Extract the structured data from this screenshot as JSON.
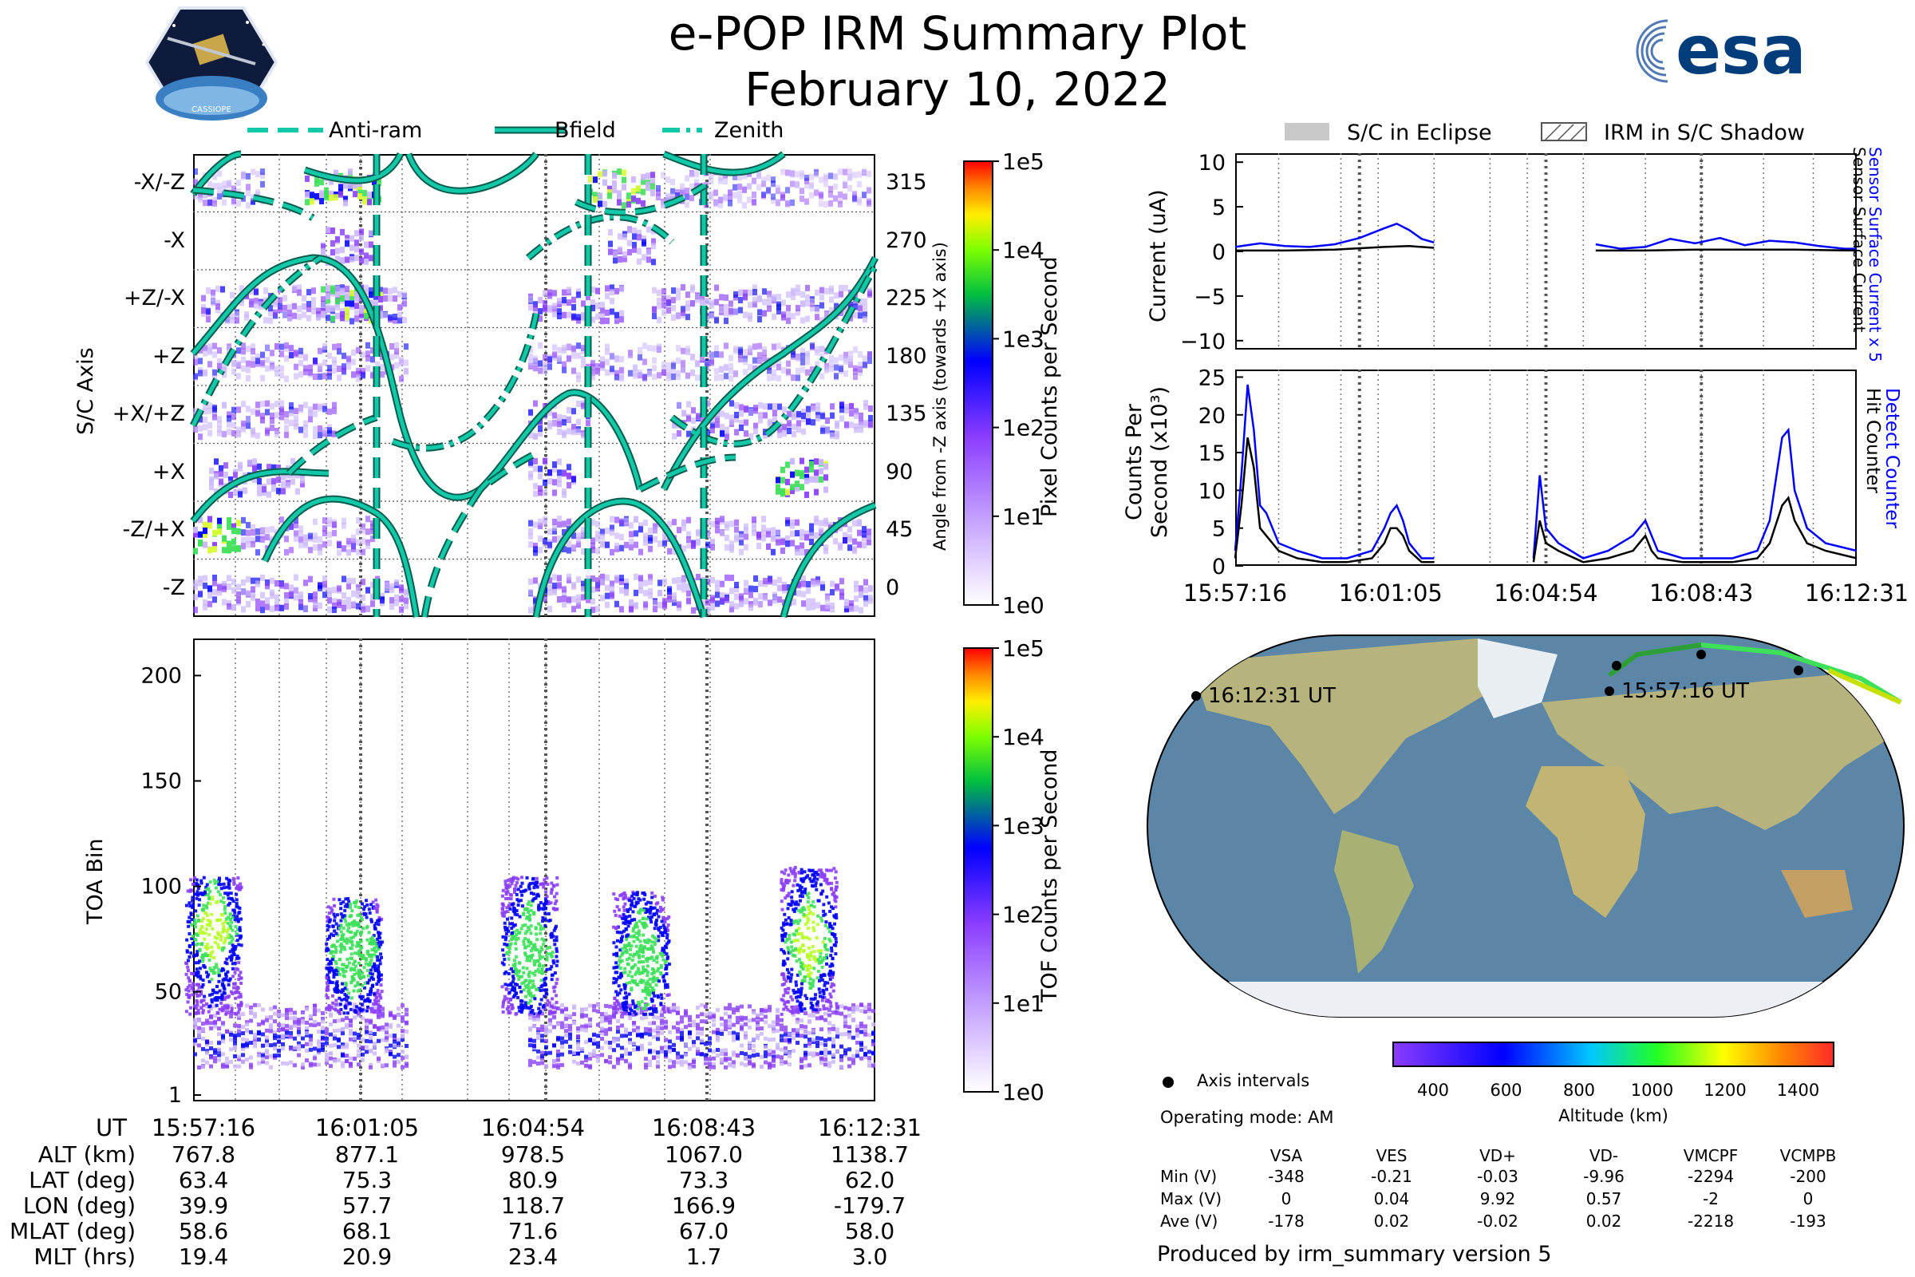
{
  "header": {
    "title": "e-POP IRM Summary Plot",
    "date": "February 10, 2022",
    "logo_left_text": "CASSIOPE",
    "logo_right_text": "esa"
  },
  "legend_top": [
    "Anti-ram",
    "Bfield",
    "Zenith"
  ],
  "legend_right": [
    "S/C in Eclipse",
    "IRM in S/C Shadow"
  ],
  "colors": {
    "teal": "#11c9a8",
    "pink": "#ff79d2",
    "blue": "#0000ff",
    "violet": "#8b3dff",
    "green": "#3ee05a",
    "map_ocean": "#5b86a8",
    "map_land": "#b7b37c",
    "map_ice": "#ecf0f4"
  },
  "chart_data": [
    {
      "type": "heatmap",
      "title": "Pixel Counts",
      "ylabel": "S/C Axis",
      "ylabel_right": "Angle from -Z axis (towards +X axis)",
      "y_categories": [
        "-X/-Z",
        "-X",
        "+Z/-X",
        "+Z",
        "+X/+Z",
        "+X",
        "-Z/+X",
        "-Z"
      ],
      "y_angles": [
        315,
        270,
        225,
        180,
        135,
        90,
        45,
        0
      ],
      "colorbar_label": "Pixel Counts per Second",
      "colorbar_ticks": [
        "1e5",
        "1e4",
        "1e3",
        "1e2",
        "1e1",
        "1e0"
      ]
    },
    {
      "type": "heatmap",
      "title": "TOF Counts",
      "ylabel": "TOA Bin",
      "yticks": [
        "200",
        "150",
        "100",
        "50",
        "1"
      ],
      "ylim": [
        1,
        210
      ],
      "colorbar_label": "TOF Counts per Second",
      "colorbar_ticks": [
        "1e5",
        "1e4",
        "1e3",
        "1e2",
        "1e1",
        "1e0"
      ]
    },
    {
      "type": "line",
      "title": "Current",
      "ylabel": "Current (uA)",
      "ylim": [
        -11,
        11
      ],
      "yticks": [
        "10",
        "5",
        "0",
        "−5",
        "−10"
      ],
      "right_label_blue": "Sensor Surface Current x 5",
      "right_label_black": "Sensor Surface Current",
      "series": [
        {
          "name": "Sensor Surface Current x 5",
          "color": "#0000ff",
          "x": [
            0,
            0.04,
            0.08,
            0.12,
            0.16,
            0.2,
            0.24,
            0.26,
            0.28,
            0.3,
            0.32,
            0.58,
            0.62,
            0.66,
            0.7,
            0.74,
            0.78,
            0.82,
            0.86,
            0.9,
            0.94,
            0.98,
            1.0
          ],
          "values": [
            0.5,
            0.9,
            0.6,
            0.5,
            0.8,
            1.5,
            2.6,
            3.1,
            2.4,
            1.4,
            1.0,
            0.8,
            0.3,
            0.5,
            1.4,
            0.9,
            1.5,
            0.7,
            1.2,
            1.0,
            0.6,
            0.3,
            0.3
          ]
        },
        {
          "name": "Sensor Surface Current",
          "color": "#000000",
          "x": [
            0,
            0.08,
            0.16,
            0.24,
            0.28,
            0.32,
            0.58,
            0.66,
            0.74,
            0.82,
            0.9,
            1.0
          ],
          "values": [
            0.1,
            0.1,
            0.2,
            0.5,
            0.6,
            0.4,
            0.1,
            0.1,
            0.2,
            0.2,
            0.2,
            0.1
          ]
        }
      ]
    },
    {
      "type": "line",
      "title": "Counts",
      "ylabel": "Counts Per Second (x10³)",
      "ylim": [
        0,
        26
      ],
      "yticks": [
        "25",
        "20",
        "15",
        "10",
        "5",
        "0"
      ],
      "x_categories": [
        "15:57:16",
        "16:01:05",
        "16:04:54",
        "16:08:43",
        "16:12:31"
      ],
      "right_label_blue": "Detect Counter",
      "right_label_black": "Hit Counter",
      "series": [
        {
          "name": "Detect Counter",
          "color": "#0000ff",
          "x": [
            0,
            0.01,
            0.02,
            0.03,
            0.04,
            0.05,
            0.07,
            0.1,
            0.14,
            0.18,
            0.22,
            0.24,
            0.25,
            0.26,
            0.27,
            0.28,
            0.3,
            0.32,
            0.48,
            0.49,
            0.5,
            0.52,
            0.56,
            0.6,
            0.64,
            0.66,
            0.67,
            0.68,
            0.72,
            0.76,
            0.8,
            0.84,
            0.86,
            0.88,
            0.89,
            0.9,
            0.92,
            0.95,
            1.0
          ],
          "values": [
            2,
            12,
            24,
            18,
            8,
            7,
            3,
            2,
            1,
            1,
            2,
            5,
            7,
            8,
            6,
            3,
            1,
            1,
            1,
            12,
            5,
            3,
            1,
            2,
            4,
            6,
            4,
            2,
            1,
            1,
            1,
            2,
            6,
            17,
            18,
            10,
            5,
            3,
            2
          ]
        },
        {
          "name": "Hit Counter",
          "color": "#000000",
          "x": [
            0,
            0.01,
            0.02,
            0.03,
            0.04,
            0.05,
            0.07,
            0.1,
            0.14,
            0.18,
            0.22,
            0.24,
            0.25,
            0.26,
            0.27,
            0.28,
            0.3,
            0.32,
            0.48,
            0.49,
            0.5,
            0.52,
            0.56,
            0.6,
            0.64,
            0.66,
            0.67,
            0.68,
            0.72,
            0.76,
            0.8,
            0.84,
            0.86,
            0.88,
            0.89,
            0.9,
            0.92,
            0.95,
            1.0
          ],
          "values": [
            1,
            8,
            17,
            13,
            5,
            4,
            2,
            1,
            0.5,
            0.5,
            1,
            3,
            5,
            5,
            4,
            2,
            0.5,
            0.5,
            0.5,
            6,
            3,
            2,
            0.5,
            1,
            2,
            4,
            2,
            1,
            0.5,
            0.5,
            0.5,
            1,
            3,
            8,
            9,
            6,
            3,
            2,
            1
          ]
        }
      ]
    }
  ],
  "x_axis": {
    "heading": "UT",
    "times": [
      "15:57:16",
      "16:01:05",
      "16:04:54",
      "16:08:43",
      "16:12:31"
    ]
  },
  "orbit_table": [
    {
      "label": "ALT (km)",
      "values": [
        "767.8",
        "877.1",
        "978.5",
        "1067.0",
        "1138.7"
      ]
    },
    {
      "label": "LAT (deg)",
      "values": [
        "63.4",
        "75.3",
        "80.9",
        "73.3",
        "62.0"
      ]
    },
    {
      "label": "LON (deg)",
      "values": [
        "39.9",
        "57.7",
        "118.7",
        "166.9",
        "-179.7"
      ]
    },
    {
      "label": "MLAT (deg)",
      "values": [
        "58.6",
        "68.1",
        "71.6",
        "67.0",
        "58.0"
      ]
    },
    {
      "label": "MLT (hrs)",
      "values": [
        "19.4",
        "20.9",
        "23.4",
        "1.7",
        "3.0"
      ]
    }
  ],
  "map": {
    "start_label": "15:57:16 UT",
    "end_label": "16:12:31 UT",
    "altitude_label": "Altitude (km)",
    "altitude_ticks": [
      "400",
      "600",
      "800",
      "1000",
      "1200",
      "1400"
    ],
    "axis_intervals_label": "Axis intervals",
    "operating_mode": "Operating mode: AM"
  },
  "voltage_table": {
    "headers": [
      "VSA",
      "VES",
      "VD+",
      "VD-",
      "VMCPF",
      "VCMPB"
    ],
    "rows": [
      {
        "label": "Min (V)",
        "values": [
          "-348",
          "-0.21",
          "-0.03",
          "-9.96",
          "-2294",
          "-200"
        ]
      },
      {
        "label": "Max (V)",
        "values": [
          "0",
          "0.04",
          "9.92",
          "0.57",
          "-2",
          "0"
        ]
      },
      {
        "label": "Ave (V)",
        "values": [
          "-178",
          "0.02",
          "-0.02",
          "0.02",
          "-2218",
          "-193"
        ]
      }
    ]
  },
  "footer": "Produced by irm_summary version 5"
}
